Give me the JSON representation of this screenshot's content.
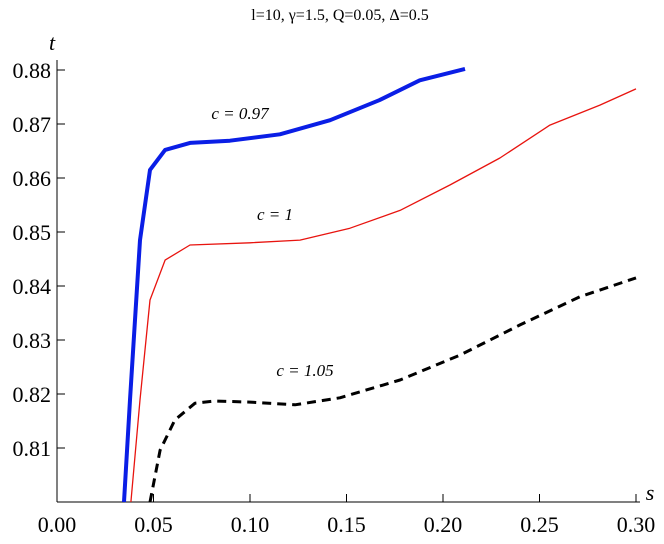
{
  "chart_data": {
    "type": "line",
    "title": "l=10, γ=1.5, Q=0.05, Δ=0.5",
    "x_label": "s",
    "y_label": "t",
    "xlim": [
      0,
      0.3
    ],
    "ylim": [
      0.8,
      0.88
    ],
    "xticks": [
      {
        "value": 0,
        "label": "0.00"
      },
      0.05,
      {
        "value": 0.1,
        "label": "0.10"
      },
      0.15,
      {
        "value": 0.2,
        "label": "0.20"
      },
      0.25,
      {
        "value": 0.3,
        "label": "0.30"
      }
    ],
    "yticks": [
      0.81,
      0.82,
      0.83,
      0.84,
      0.85,
      0.86,
      0.87,
      0.88
    ],
    "annotations": [
      "c = 0.97",
      "c = 1",
      "c = 1.05"
    ],
    "series": [
      {
        "name": "c = 0.97",
        "color": "#0a1ee6",
        "width": 4,
        "dashed": false,
        "x": [
          0.0347,
          0.0378,
          0.043,
          0.0482,
          0.056,
          0.0689,
          0.0896,
          0.1155,
          0.1415,
          0.167,
          0.188,
          0.2114
        ],
        "values": [
          0.8,
          0.8189,
          0.8485,
          0.8615,
          0.8652,
          0.8665,
          0.8669,
          0.8681,
          0.8707,
          0.8744,
          0.8781,
          0.8802
        ]
      },
      {
        "name": "c = 1",
        "color": "#e8140f",
        "width": 1.3,
        "dashed": false,
        "x": [
          0.0383,
          0.043,
          0.0482,
          0.056,
          0.0689,
          0.1,
          0.1259,
          0.1518,
          0.1777,
          0.2036,
          0.2295,
          0.2554,
          0.2813,
          0.3
        ],
        "values": [
          0.8,
          0.8189,
          0.8374,
          0.8448,
          0.8476,
          0.848,
          0.8485,
          0.8507,
          0.854,
          0.8587,
          0.8637,
          0.8698,
          0.8735,
          0.8765
        ]
      },
      {
        "name": "c = 1.05",
        "color": "#000000",
        "width": 3,
        "dashed": true,
        "x": [
          0.0482,
          0.0534,
          0.0611,
          0.0715,
          0.0819,
          0.1,
          0.1233,
          0.1466,
          0.1777,
          0.2088,
          0.2399,
          0.2709,
          0.3
        ],
        "values": [
          0.8,
          0.8096,
          0.8152,
          0.8183,
          0.8187,
          0.8185,
          0.818,
          0.8193,
          0.8226,
          0.8272,
          0.8328,
          0.838,
          0.8415
        ]
      }
    ]
  }
}
